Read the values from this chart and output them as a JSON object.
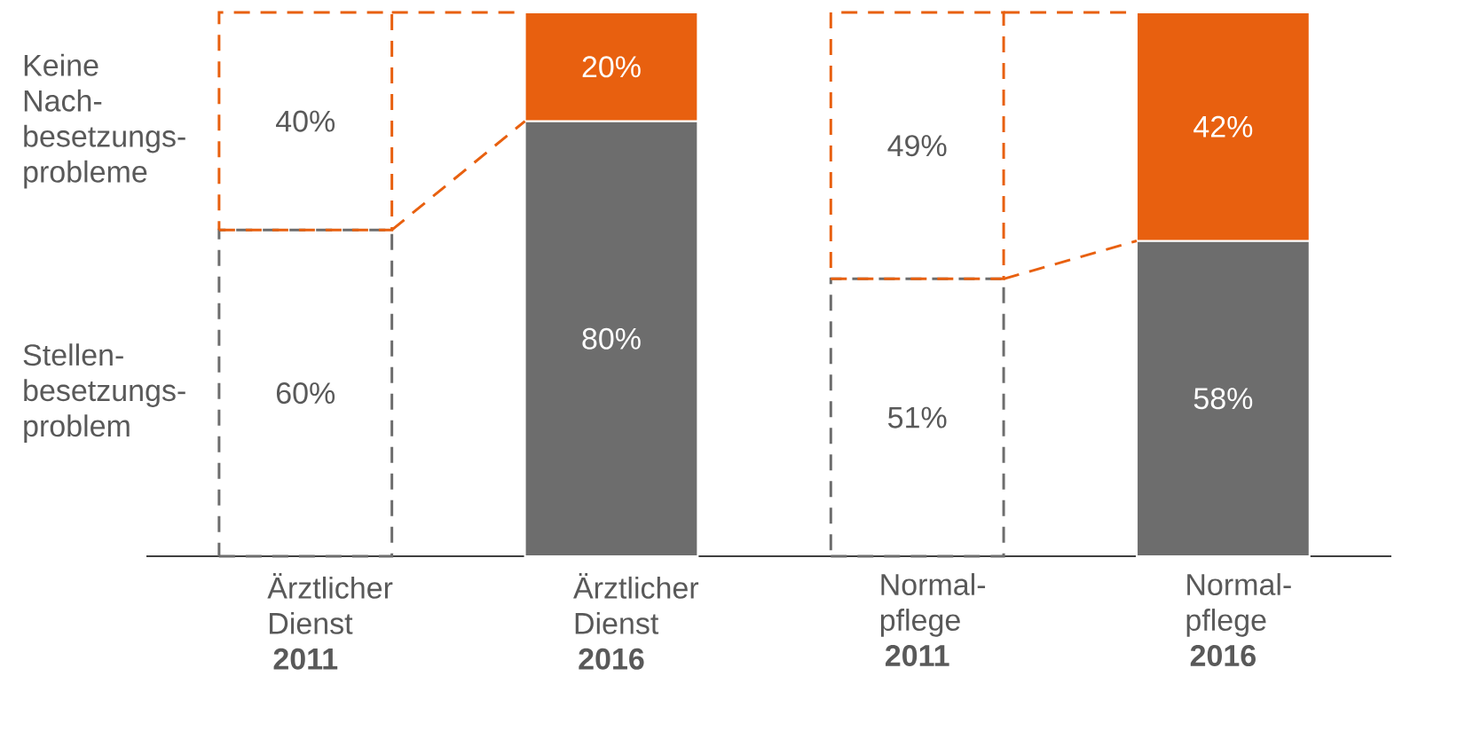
{
  "chart_data": {
    "type": "bar",
    "stacked": true,
    "categories": [
      "Ärztlicher Dienst **2011**",
      "Ärztlicher Dienst **2016**",
      "Normal-pflege **2011**",
      "Normal-pflege **2016**"
    ],
    "ylim": [
      0,
      100
    ],
    "tick_labels": "x",
    "series": [
      {
        "name": "Stellen-besetzungs-problem",
        "color": "#6d6d6d",
        "line_style": "dashed",
        "values": [
          60,
          null,
          51,
          null
        ],
        "value_labels": [
          "60%",
          null,
          "51%",
          null
        ]
      },
      {
        "color": "#6d6d6d",
        "values": [
          null,
          80,
          null,
          58
        ],
        "value_labels": [
          null,
          "80%",
          null,
          "58%"
        ]
      },
      {
        "name": "Keine Nach-besetzungs-probleme",
        "color": "#e8600f",
        "line_style": "dashed",
        "values": [
          40,
          null,
          49,
          null
        ],
        "value_labels": [
          "40%",
          null,
          "49%",
          null
        ]
      },
      {
        "color": "#e8600f",
        "values": [
          null,
          20,
          null,
          42
        ],
        "value_labels": [
          null,
          "20%",
          null,
          "42%"
        ]
      }
    ]
  }
}
